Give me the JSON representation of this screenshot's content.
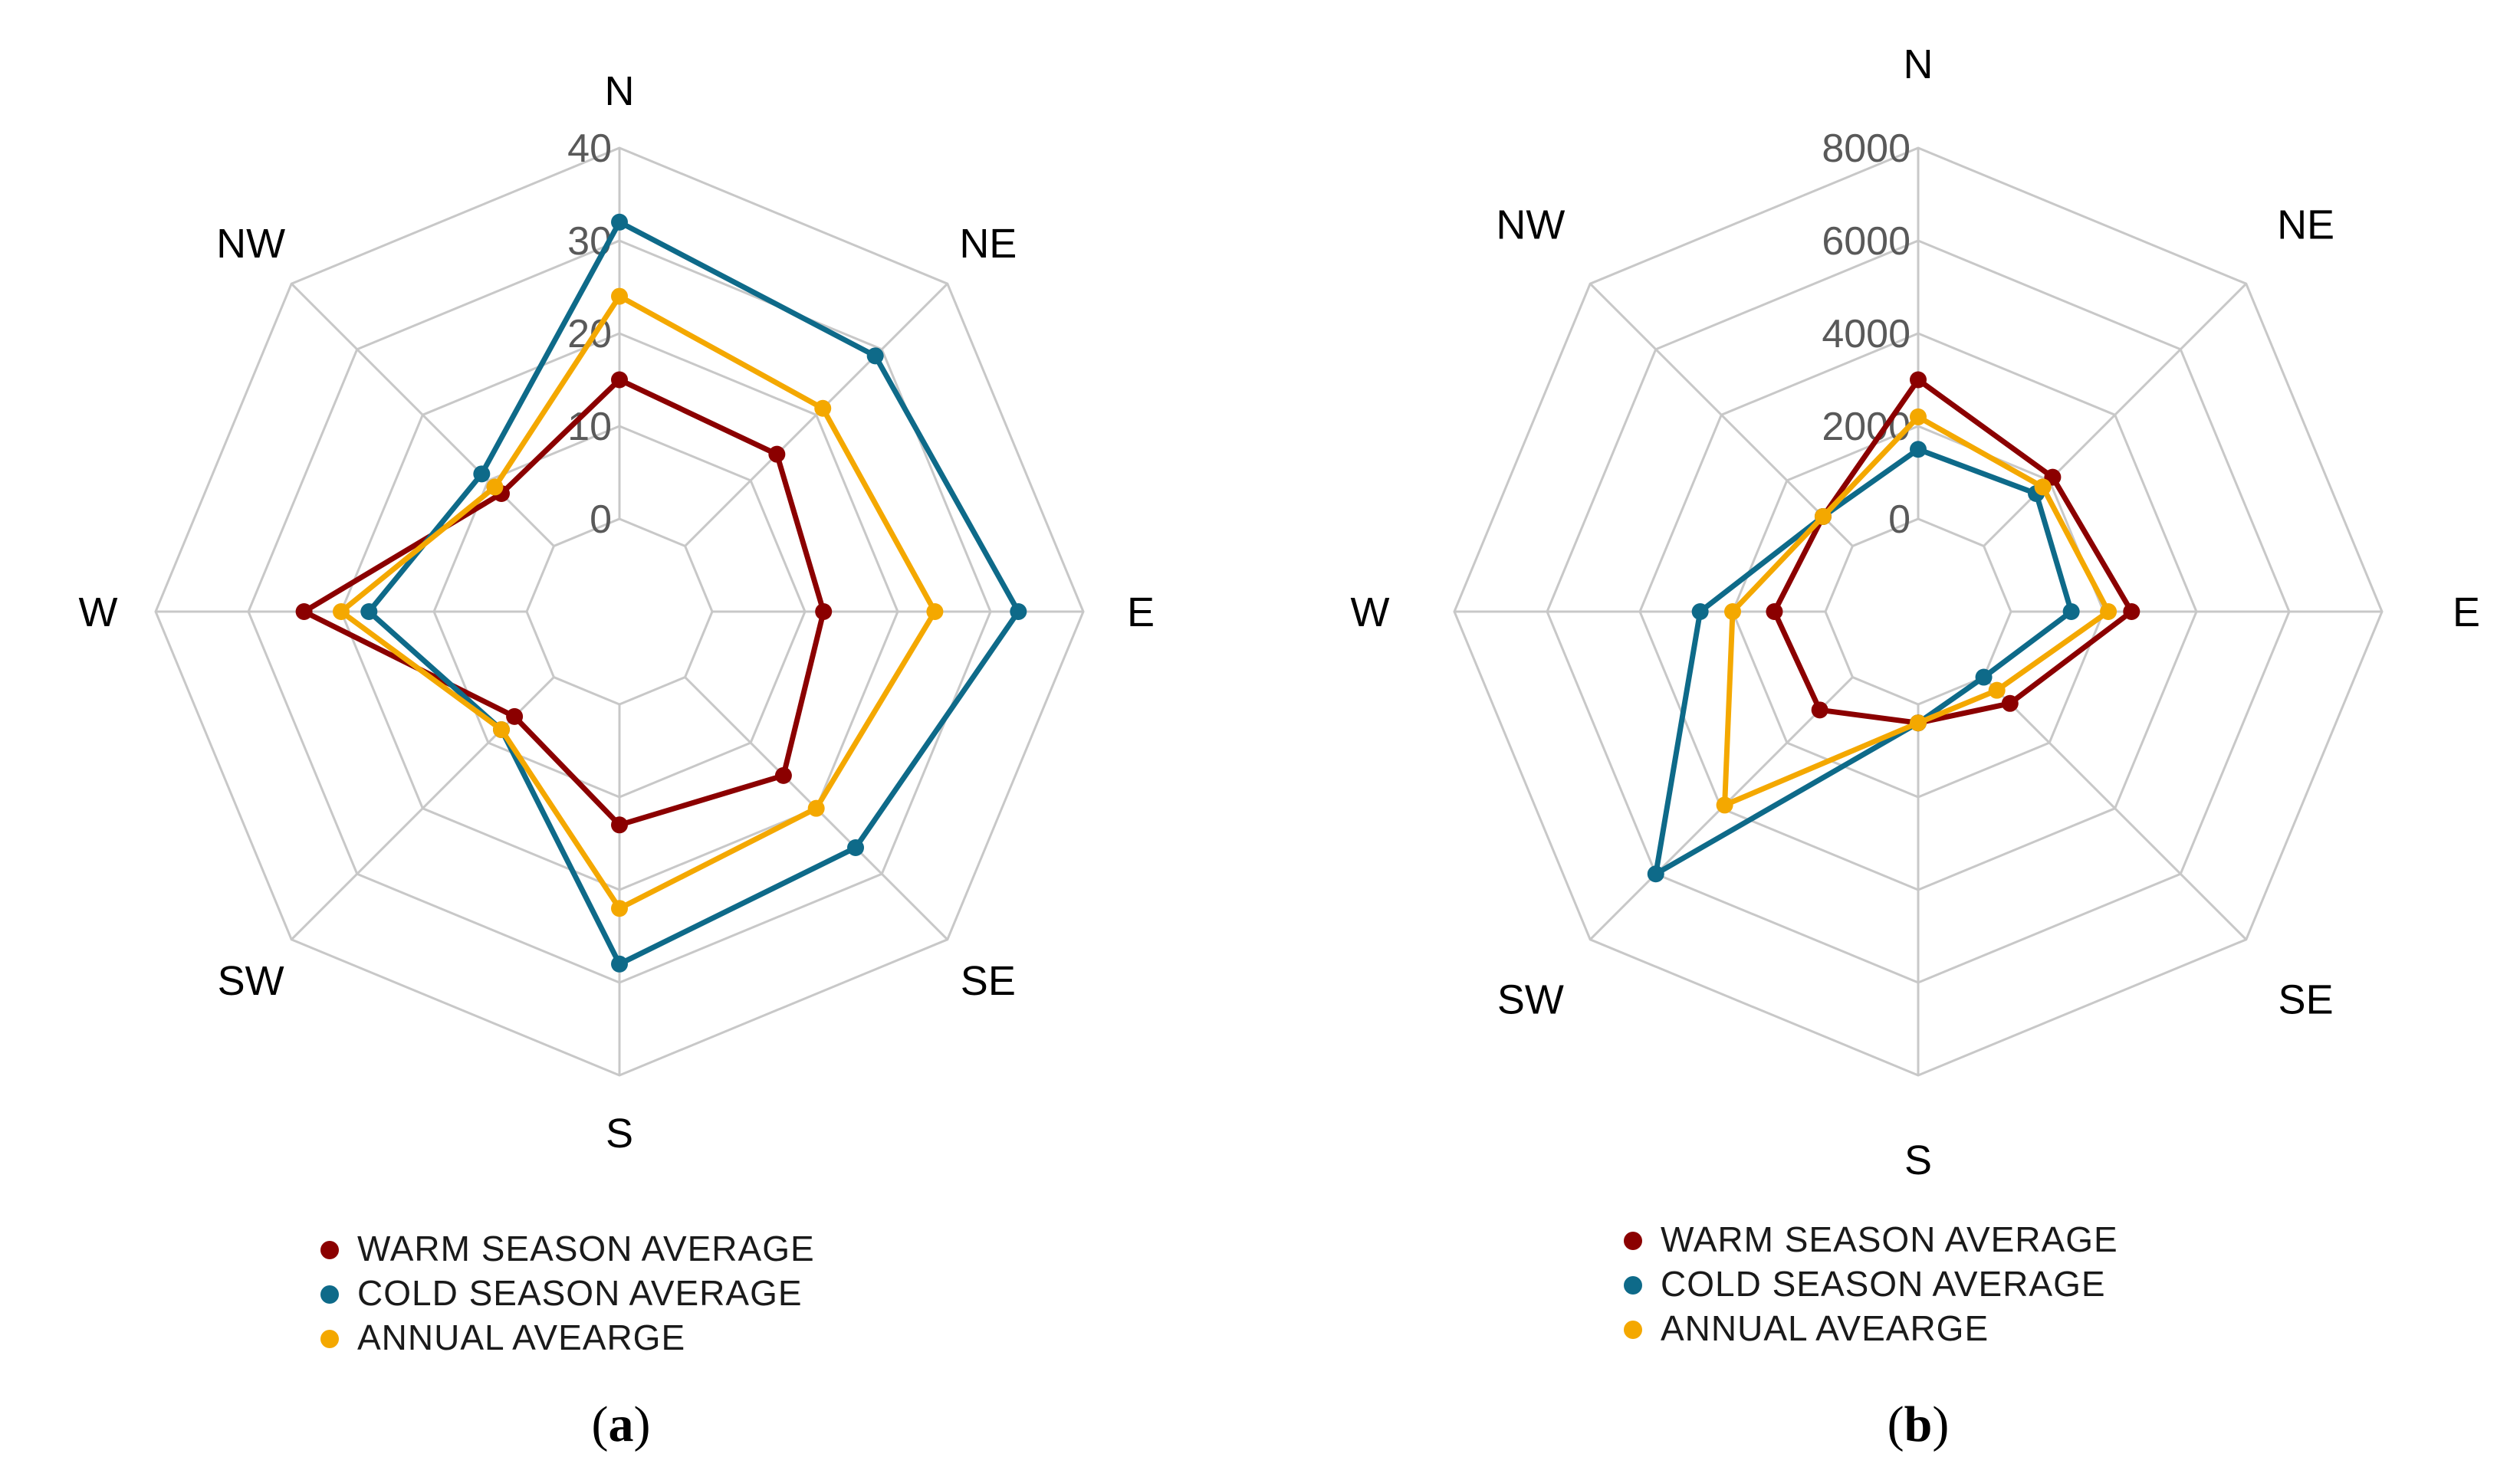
{
  "chart_data": [
    {
      "type": "radar",
      "caption_letter": "a",
      "axes": [
        "N",
        "NE",
        "E",
        "SE",
        "S",
        "SW",
        "W",
        "NW"
      ],
      "tick_labels": [
        "0",
        "10",
        "20",
        "30",
        "40"
      ],
      "range": [
        -10,
        40
      ],
      "grid": true,
      "legend_position": "bottom",
      "series": [
        {
          "name": "WARM SEASON AVERAGE",
          "color": "#8b0000",
          "values": [
            15,
            14,
            12,
            15,
            13,
            6,
            24,
            8
          ]
        },
        {
          "name": "COLD SEASON AVERAGE",
          "color": "#0e6a89",
          "values": [
            32,
            29,
            33,
            26,
            28,
            8,
            17,
            11
          ]
        },
        {
          "name": "ANNUAL AVEARGE",
          "color": "#f4a800",
          "values": [
            24,
            21,
            24,
            20,
            22,
            8,
            20,
            9
          ]
        }
      ]
    },
    {
      "type": "radar",
      "caption_letter": "b",
      "axes": [
        "N",
        "NE",
        "E",
        "SE",
        "S",
        "SW",
        "W",
        "NW"
      ],
      "tick_labels": [
        "0",
        "2000",
        "4000",
        "6000",
        "8000"
      ],
      "range": [
        -2000,
        8000
      ],
      "grid": true,
      "legend_position": "bottom",
      "series": [
        {
          "name": "WARM SEASON AVERAGE",
          "color": "#8b0000",
          "values": [
            3000,
            2100,
            2600,
            800,
            400,
            1000,
            1100,
            900
          ]
        },
        {
          "name": "COLD SEASON AVERAGE",
          "color": "#0e6a89",
          "values": [
            1500,
            1600,
            1300,
            0,
            400,
            6000,
            2700,
            900
          ]
        },
        {
          "name": "ANNUAL AVEARGE",
          "color": "#f4a800",
          "values": [
            2200,
            1800,
            2100,
            400,
            400,
            3900,
            2000,
            900
          ]
        }
      ]
    }
  ]
}
